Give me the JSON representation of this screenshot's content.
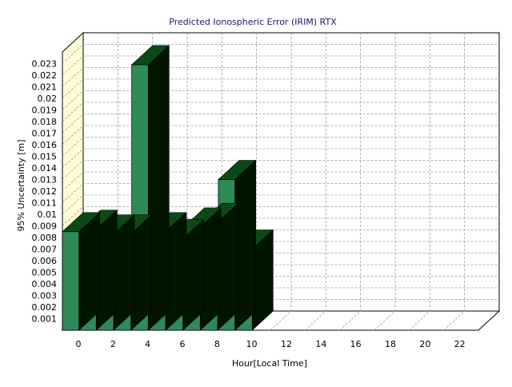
{
  "chart_data": {
    "type": "bar",
    "title": "Predicted Ionospheric Error (IRIM) RTX",
    "xlabel": "Hour[Local Time]",
    "ylabel": "95% Uncertainty [m]",
    "xlim": [
      0,
      24
    ],
    "ylim": [
      0,
      0.024
    ],
    "xticks": [
      "0",
      "2",
      "4",
      "6",
      "8",
      "10",
      "12",
      "14",
      "16",
      "18",
      "20",
      "22"
    ],
    "yticks": [
      "0.001",
      "0.002",
      "0.003",
      "0.004",
      "0.005",
      "0.006",
      "0.007",
      "0.008",
      "0.009",
      "0.01",
      "0.011",
      "0.012",
      "0.013",
      "0.014",
      "0.015",
      "0.016",
      "0.017",
      "0.018",
      "0.019",
      "0.02",
      "0.021",
      "0.022",
      "0.023"
    ],
    "categories": [
      0,
      1,
      2,
      3,
      4,
      5,
      6,
      7,
      8,
      9,
      10,
      11,
      12,
      13,
      14,
      15,
      16,
      17,
      18,
      19,
      20,
      21,
      22,
      23
    ],
    "values": [
      0.0085,
      0.0087,
      0.0083,
      0.0083,
      0.0229,
      0.0085,
      0.0079,
      0.0089,
      0.0093,
      0.013,
      0.007,
      null,
      null,
      null,
      null,
      null,
      null,
      null,
      null,
      null,
      null,
      null,
      null,
      null
    ],
    "grid": true,
    "bar_color": "#2e8b57",
    "bar_top_color": "#0b4a16",
    "bar_side_color": "#001400",
    "wall_color": "#fffbd6"
  }
}
